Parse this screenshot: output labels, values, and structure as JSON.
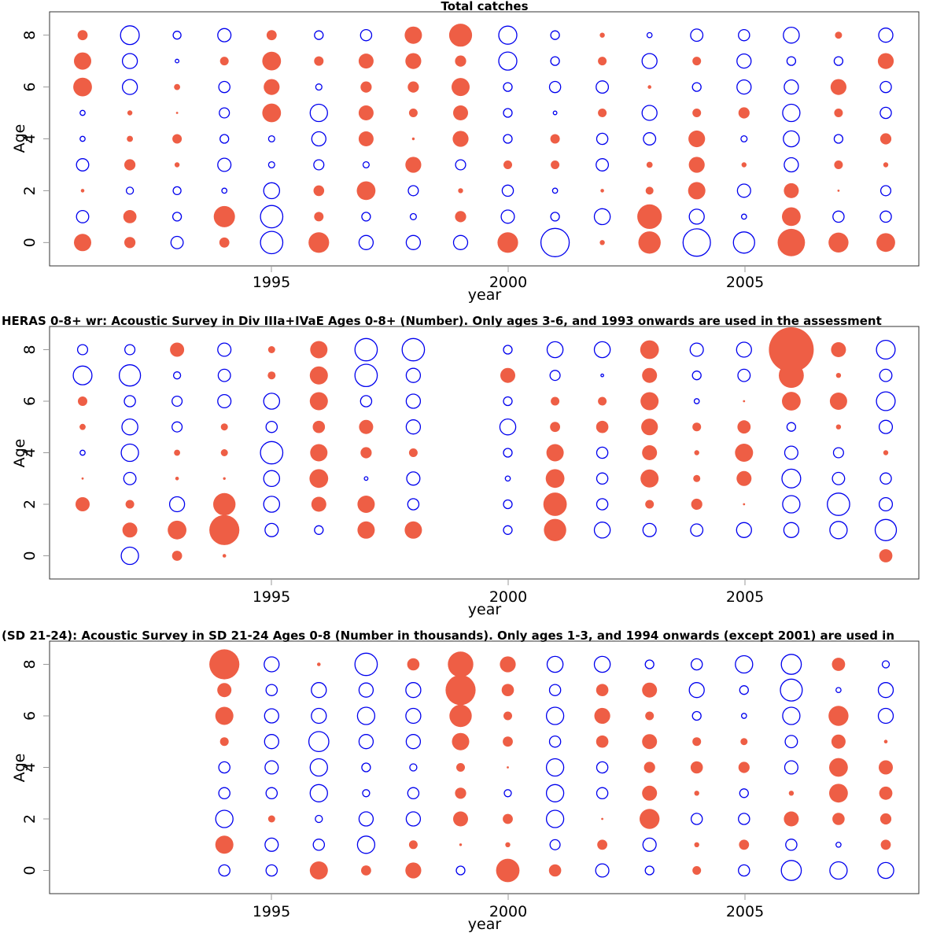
{
  "chart_data": [
    {
      "type": "scatter",
      "subtype": "bubble",
      "title": "Total catches",
      "xlabel": "year",
      "ylabel": "Age",
      "x_ticks": [
        "1995",
        "2000",
        "2005"
      ],
      "y_ticks": [
        "0",
        "2",
        "4",
        "6",
        "8"
      ],
      "xlim": [
        1990.3,
        2008.7
      ],
      "ylim": [
        -0.9,
        8.9
      ],
      "ages": [
        0,
        1,
        2,
        3,
        4,
        5,
        6,
        7,
        8
      ],
      "years": [
        1991,
        1992,
        1993,
        1994,
        1995,
        1996,
        1997,
        1998,
        1999,
        2000,
        2001,
        2002,
        2003,
        2004,
        2005,
        2006,
        2007,
        2008
      ],
      "legend": {
        "positive": "filled",
        "negative": "open"
      },
      "values_by_year": [
        [
          1.2,
          -0.6,
          0.05,
          -0.6,
          -0.1,
          -0.1,
          1.4,
          1.2,
          0.4
        ],
        [
          0.5,
          0.7,
          -0.2,
          0.5,
          0.15,
          0.1,
          -0.9,
          -0.9,
          -1.4
        ],
        [
          -0.6,
          -0.3,
          -0.25,
          0.1,
          0.35,
          0.02,
          0.15,
          -0.05,
          -0.25
        ],
        [
          0.4,
          1.8,
          -0.1,
          -0.7,
          -0.3,
          -0.4,
          -0.5,
          0.3,
          -0.7
        ],
        [
          -2.0,
          -2.0,
          -1.0,
          -0.15,
          -0.15,
          1.4,
          1.0,
          1.4,
          0.4
        ],
        [
          1.7,
          0.35,
          0.45,
          -0.4,
          -0.8,
          -1.2,
          -0.15,
          0.35,
          -0.3
        ],
        [
          -0.8,
          -0.3,
          1.4,
          -0.15,
          0.9,
          0.9,
          0.5,
          0.9,
          -0.5
        ],
        [
          -0.8,
          -0.15,
          -0.4,
          1.0,
          0.03,
          0.3,
          0.5,
          1.0,
          1.2
        ],
        [
          -0.8,
          0.5,
          0.1,
          -0.4,
          1.0,
          0.9,
          1.3,
          0.5,
          2.1
        ],
        [
          1.7,
          -0.7,
          -0.5,
          0.3,
          -0.3,
          -0.3,
          -0.3,
          -1.3,
          -1.3
        ],
        [
          -3.2,
          -0.3,
          -0.1,
          0.3,
          0.35,
          -0.05,
          -0.5,
          -0.3,
          -0.3
        ],
        [
          0.1,
          -1.0,
          0.05,
          -0.6,
          -0.5,
          0.3,
          -0.6,
          0.3,
          0.1
        ],
        [
          2.0,
          2.4,
          0.25,
          0.15,
          -0.6,
          -0.9,
          0.05,
          -0.9,
          -0.1
        ],
        [
          -3.0,
          -0.9,
          1.2,
          1.0,
          1.1,
          0.3,
          -0.3,
          0.3,
          -0.6
        ],
        [
          -1.8,
          -0.1,
          -0.7,
          0.1,
          -0.15,
          0.5,
          -0.8,
          -0.8,
          -0.5
        ],
        [
          3.0,
          1.4,
          0.9,
          -0.8,
          -1.0,
          -1.2,
          -0.8,
          -0.3,
          -1.0
        ],
        [
          1.6,
          -0.5,
          0.02,
          0.3,
          -0.3,
          0.3,
          1.0,
          -0.3,
          0.2
        ],
        [
          1.4,
          -0.5,
          -0.4,
          0.1,
          0.5,
          -0.5,
          -0.5,
          1.0,
          -0.8
        ]
      ]
    },
    {
      "type": "scatter",
      "subtype": "bubble",
      "title": "HERAS 0-8+ wr: Acoustic Survey in Div IIIa+IVaE Ages 0-8+ (Number). Only ages 3-6, and 1993 onwards are used in the assessment",
      "xlabel": "year",
      "ylabel": "Age",
      "x_ticks": [
        "1995",
        "2000",
        "2005"
      ],
      "y_ticks": [
        "0",
        "2",
        "4",
        "6",
        "8"
      ],
      "xlim": [
        1990.3,
        2008.7
      ],
      "ylim": [
        -0.9,
        8.9
      ],
      "ages": [
        0,
        1,
        2,
        3,
        4,
        5,
        6,
        7,
        8
      ],
      "years": [
        1991,
        1992,
        1993,
        1994,
        1995,
        1996,
        1997,
        1998,
        1999,
        2000,
        2001,
        2002,
        2003,
        2004,
        2005,
        2006,
        2007,
        2008
      ],
      "values_by_year": [
        [
          null,
          null,
          0.8,
          0.02,
          -0.1,
          0.15,
          0.35,
          -1.4,
          -0.4
        ],
        [
          -1.2,
          0.9,
          0.3,
          -0.6,
          -1.2,
          -1.0,
          -0.5,
          -1.8,
          -0.4
        ],
        [
          0.4,
          1.4,
          -0.9,
          0.05,
          0.15,
          -0.4,
          -0.4,
          -0.2,
          0.8
        ],
        [
          0.05,
          3.6,
          2.0,
          0.03,
          0.2,
          0.2,
          -0.7,
          -0.6,
          -0.7
        ],
        [
          null,
          -0.7,
          -1.0,
          -1.0,
          -2.0,
          -0.5,
          -1.0,
          0.25,
          0.2
        ],
        [
          null,
          -0.3,
          0.9,
          1.4,
          1.2,
          0.6,
          1.3,
          1.3,
          1.2
        ],
        [
          null,
          1.2,
          1.2,
          -0.05,
          0.5,
          0.8,
          -0.5,
          -2.0,
          -2.0
        ],
        [
          null,
          1.2,
          -0.5,
          -0.7,
          0.3,
          -0.8,
          -0.8,
          -0.8,
          -2.0
        ],
        null,
        [
          null,
          -0.3,
          -0.3,
          -0.1,
          -0.3,
          -1.0,
          -0.3,
          0.9,
          -0.3
        ],
        [
          null,
          2.0,
          2.2,
          1.4,
          1.2,
          0.4,
          0.3,
          -0.4,
          -1.0
        ],
        [
          null,
          -1.0,
          -0.5,
          -0.5,
          -0.5,
          0.6,
          0.3,
          -0.03,
          -1.0
        ],
        [
          null,
          -0.7,
          0.3,
          1.3,
          0.9,
          1.1,
          1.3,
          0.9,
          1.4
        ],
        [
          null,
          -0.6,
          0.5,
          0.2,
          0.1,
          0.3,
          -0.1,
          -0.3,
          -0.7
        ],
        [
          null,
          -0.9,
          0.02,
          0.9,
          1.3,
          0.7,
          0.02,
          -0.6,
          -0.9
        ],
        [
          null,
          -0.9,
          -1.2,
          -1.4,
          -0.7,
          -0.3,
          1.4,
          2.5,
          8.0
        ],
        [
          null,
          -1.2,
          -2.0,
          -0.6,
          -0.4,
          0.1,
          1.2,
          0.1,
          0.9
        ],
        [
          0.7,
          -1.8,
          -0.7,
          -0.5,
          0.1,
          -0.7,
          -1.4,
          -0.6,
          -1.4
        ]
      ]
    },
    {
      "type": "scatter",
      "subtype": "bubble",
      "title": "(SD 21-24): Acoustic Survey in SD 21-24 Ages 0-8 (Number in thousands). Only ages 1-3, and 1994 onwards (except 2001) are used in",
      "xlabel": "year",
      "ylabel": "Age",
      "x_ticks": [
        "1995",
        "2000",
        "2005"
      ],
      "y_ticks": [
        "0",
        "2",
        "4",
        "6",
        "8"
      ],
      "xlim": [
        1990.3,
        2008.7
      ],
      "ylim": [
        -0.9,
        8.9
      ],
      "ages": [
        0,
        1,
        2,
        3,
        4,
        5,
        6,
        7,
        8
      ],
      "years": [
        1991,
        1992,
        1993,
        1994,
        1995,
        1996,
        1997,
        1998,
        1999,
        2000,
        2001,
        2002,
        2003,
        2004,
        2005,
        2006,
        2007,
        2008
      ],
      "values_by_year": [
        null,
        null,
        null,
        [
          -0.5,
          1.3,
          -1.2,
          -0.5,
          -0.5,
          0.3,
          1.3,
          0.8,
          3.6
        ],
        [
          -0.5,
          -0.7,
          0.2,
          -0.5,
          -0.7,
          -0.8,
          -0.8,
          -0.5,
          -0.9
        ],
        [
          1.3,
          -0.5,
          -0.2,
          -1.2,
          -1.2,
          -1.6,
          -0.9,
          -0.9,
          0.05
        ],
        [
          0.4,
          -1.2,
          -0.8,
          -0.2,
          -0.3,
          -0.8,
          -1.2,
          -0.8,
          -2.0
        ],
        [
          1.0,
          0.3,
          -0.8,
          -0.5,
          -0.2,
          -0.8,
          -0.9,
          -0.9,
          0.6
        ],
        [
          -0.3,
          0.03,
          0.9,
          0.5,
          0.3,
          1.2,
          2.0,
          3.6,
          2.6
        ],
        [
          2.2,
          0.1,
          0.4,
          -0.2,
          0.02,
          0.4,
          0.3,
          0.6,
          1.0
        ],
        [
          0.6,
          -0.4,
          -1.2,
          -1.2,
          -1.2,
          -0.5,
          -1.2,
          -0.5,
          -1.0
        ],
        [
          -0.7,
          0.4,
          0.02,
          -0.5,
          -0.5,
          0.6,
          1.0,
          0.6,
          -1.0
        ],
        [
          -0.3,
          -0.7,
          1.6,
          0.9,
          0.5,
          0.9,
          0.3,
          0.9,
          -0.3
        ],
        [
          0.3,
          0.1,
          -0.5,
          0.1,
          0.6,
          0.3,
          -0.3,
          -0.9,
          -0.5
        ],
        [
          -0.5,
          0.4,
          -0.5,
          -0.3,
          0.5,
          0.2,
          -0.1,
          -0.3,
          -1.2
        ],
        [
          -1.6,
          -0.5,
          0.9,
          0.1,
          -0.7,
          -0.6,
          -1.2,
          -1.9,
          -1.6
        ],
        [
          -1.2,
          -0.1,
          0.6,
          1.4,
          1.4,
          0.8,
          1.6,
          -0.1,
          0.7
        ],
        [
          -1.0,
          0.4,
          0.5,
          0.7,
          0.8,
          0.05,
          -0.9,
          -0.9,
          -0.2
        ]
      ]
    }
  ],
  "colors": {
    "positive_fill": "#EE5E45",
    "negative_stroke": "#0000EE",
    "axis": "#333333"
  }
}
